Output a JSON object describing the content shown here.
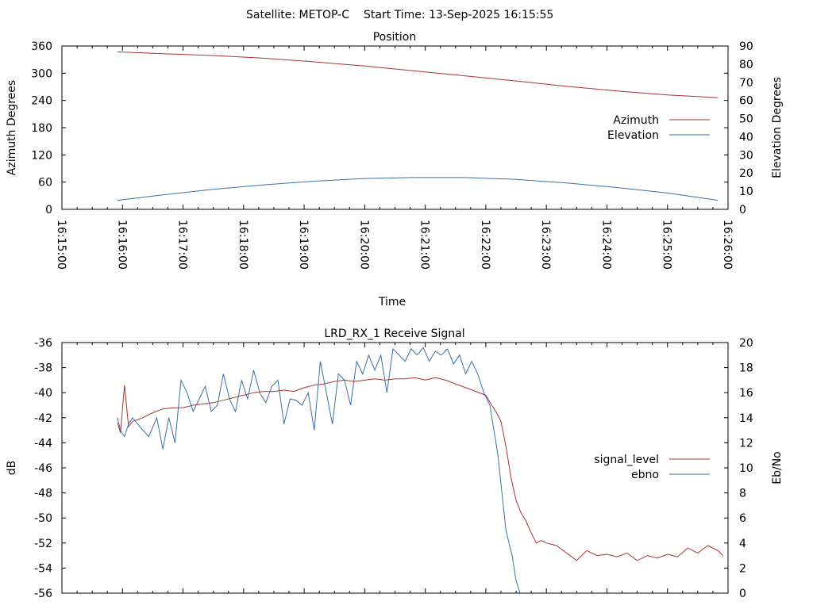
{
  "header": {
    "satellite": "Satellite: METOP-C",
    "start_time": "Start Time: 13-Sep-2025 16:15:55"
  },
  "chart_data": [
    {
      "type": "line",
      "title": "Position",
      "xlabel": "Time",
      "ylabel": "Azimuth Degrees",
      "y2label": "Elevation Degrees",
      "xticks": [
        "16:15:00",
        "16:16:00",
        "16:17:00",
        "16:18:00",
        "16:19:00",
        "16:20:00",
        "16:21:00",
        "16:22:00",
        "16:23:00",
        "16:24:00",
        "16:25:00",
        "16:26:00"
      ],
      "xlim": [
        0,
        660
      ],
      "ylim": [
        0,
        360
      ],
      "yticks": [
        "0",
        "60",
        "120",
        "180",
        "240",
        "300",
        "360"
      ],
      "y2lim": [
        0,
        90
      ],
      "y2ticks": [
        "0",
        "10",
        "20",
        "30",
        "40",
        "50",
        "60",
        "70",
        "80",
        "90"
      ],
      "legend_position": "right",
      "grid": false,
      "series": [
        {
          "name": "Azimuth",
          "axis": "y",
          "color": "#a83232",
          "x": [
            55,
            100,
            150,
            200,
            250,
            300,
            350,
            400,
            450,
            500,
            550,
            600,
            650
          ],
          "values": [
            347,
            343,
            339,
            333,
            325,
            316,
            305,
            294,
            283,
            271,
            261,
            252,
            246
          ]
        },
        {
          "name": "Elevation",
          "axis": "y2",
          "color": "#3a6ea5",
          "x": [
            55,
            100,
            150,
            200,
            250,
            300,
            350,
            400,
            450,
            500,
            550,
            600,
            650
          ],
          "values": [
            5,
            8,
            11,
            13.5,
            15.5,
            17,
            17.5,
            17.5,
            16.5,
            14.5,
            12,
            9,
            5
          ]
        }
      ]
    },
    {
      "type": "line",
      "title": "LRD_RX_1 Receive Signal",
      "xlabel": "",
      "ylabel": "dB",
      "y2label": "Eb/No",
      "ylim": [
        -56,
        -36
      ],
      "yticks": [
        "-56",
        "-54",
        "-52",
        "-50",
        "-48",
        "-46",
        "-44",
        "-42",
        "-40",
        "-38",
        "-36"
      ],
      "y2lim": [
        0,
        20
      ],
      "y2ticks": [
        "0",
        "2",
        "4",
        "6",
        "8",
        "10",
        "12",
        "14",
        "16",
        "18",
        "20"
      ],
      "xlim": [
        0,
        660
      ],
      "legend_position": "right",
      "grid": false,
      "series": [
        {
          "name": "signal_level",
          "axis": "y",
          "color": "#a83232",
          "x": [
            55,
            58,
            62,
            66,
            70,
            80,
            90,
            100,
            110,
            120,
            130,
            140,
            150,
            160,
            170,
            180,
            190,
            200,
            210,
            220,
            230,
            240,
            250,
            260,
            270,
            280,
            290,
            300,
            310,
            320,
            330,
            340,
            350,
            360,
            370,
            380,
            390,
            400,
            410,
            420,
            425,
            430,
            435,
            440,
            445,
            450,
            455,
            460,
            465,
            470,
            475,
            480,
            485,
            490,
            500,
            510,
            520,
            530,
            540,
            550,
            560,
            570,
            580,
            590,
            600,
            610,
            620,
            630,
            640,
            650,
            655
          ],
          "values": [
            -42.4,
            -43.2,
            -39.4,
            -42.7,
            -42.3,
            -42.0,
            -41.6,
            -41.3,
            -41.2,
            -41.2,
            -41.0,
            -40.9,
            -40.8,
            -40.6,
            -40.4,
            -40.2,
            -40.0,
            -39.9,
            -39.9,
            -39.8,
            -39.9,
            -39.6,
            -39.4,
            -39.3,
            -39.1,
            -39.0,
            -39.1,
            -39.0,
            -38.9,
            -39.0,
            -38.9,
            -38.9,
            -38.8,
            -39.0,
            -38.8,
            -39.0,
            -39.3,
            -39.6,
            -39.9,
            -40.2,
            -40.9,
            -41.5,
            -42.3,
            -44.3,
            -46.8,
            -48.6,
            -49.6,
            -50.3,
            -51.2,
            -52.0,
            -51.8,
            -52.0,
            -52.1,
            -52.2,
            -52.8,
            -53.4,
            -52.6,
            -53.0,
            -52.9,
            -53.1,
            -52.8,
            -53.4,
            -53.0,
            -53.2,
            -52.9,
            -53.1,
            -52.4,
            -52.8,
            -52.2,
            -52.6,
            -53.0
          ]
        },
        {
          "name": "ebno",
          "axis": "y2",
          "color": "#3a6ea5",
          "x": [
            55,
            58,
            62,
            66,
            70,
            78,
            86,
            94,
            100,
            106,
            112,
            118,
            124,
            130,
            136,
            142,
            148,
            154,
            160,
            166,
            172,
            178,
            184,
            190,
            196,
            202,
            208,
            214,
            220,
            226,
            232,
            238,
            244,
            250,
            256,
            262,
            268,
            274,
            280,
            286,
            292,
            298,
            304,
            310,
            316,
            322,
            328,
            334,
            340,
            346,
            352,
            358,
            364,
            370,
            376,
            382,
            388,
            394,
            400,
            406,
            412,
            418,
            424,
            428,
            432,
            436,
            440,
            446,
            450,
            454
          ],
          "values": [
            14,
            13,
            12.5,
            13.5,
            14,
            13.2,
            12.5,
            14,
            11.5,
            14,
            12,
            17,
            16,
            14.5,
            15.5,
            16.5,
            14.5,
            15,
            17.5,
            15.5,
            14.5,
            17,
            15.5,
            17.8,
            16,
            15.2,
            16.5,
            17,
            13.5,
            15.5,
            15.4,
            15,
            16,
            13,
            18.5,
            16,
            13.5,
            17.5,
            17,
            15,
            18.5,
            17.5,
            19,
            17.8,
            19,
            16,
            19.5,
            19,
            18.5,
            19.5,
            19,
            19.6,
            18.5,
            19.3,
            19,
            19.5,
            18.3,
            19,
            17.5,
            18.5,
            17.5,
            16,
            15,
            13,
            11,
            8,
            5,
            3,
            1,
            0
          ]
        }
      ]
    }
  ]
}
